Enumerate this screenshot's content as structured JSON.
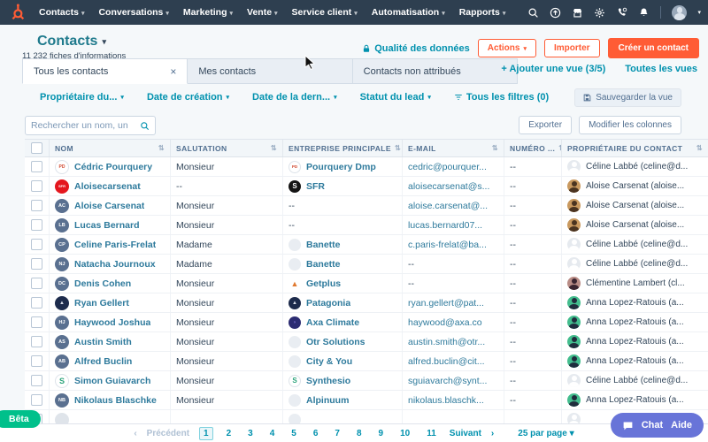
{
  "nav": {
    "items": [
      {
        "label": "Contacts"
      },
      {
        "label": "Conversations"
      },
      {
        "label": "Marketing"
      },
      {
        "label": "Vente"
      },
      {
        "label": "Service client"
      },
      {
        "label": "Automatisation"
      },
      {
        "label": "Rapports"
      }
    ],
    "icons": [
      "search-icon",
      "upgrade-icon",
      "marketplace-icon",
      "settings-icon",
      "call-icon",
      "notifications-icon",
      "user-avatar"
    ]
  },
  "header": {
    "title": "Contacts",
    "subtitle": "11 232 fiches d'informations",
    "quality_link": "Qualité des données",
    "actions_label": "Actions",
    "import_label": "Importer",
    "create_label": "Créer un contact"
  },
  "tabs": {
    "items": [
      {
        "label": "Tous les contacts",
        "active": true
      },
      {
        "label": "Mes contacts",
        "active": false
      },
      {
        "label": "Contacts non attribués",
        "active": false
      }
    ],
    "add_view": "+ Ajouter une vue (3/5)",
    "all_views": "Toutes les vues"
  },
  "filters": {
    "items": [
      "Propriétaire du...",
      "Date de création",
      "Date de la dern...",
      "Statut du lead"
    ],
    "all_filters": "Tous les filtres (0)",
    "save_view": "Sauvegarder la vue"
  },
  "toolbar": {
    "search_placeholder": "Rechercher un nom, un",
    "export_label": "Exporter",
    "edit_columns_label": "Modifier les colonnes"
  },
  "table": {
    "columns": [
      "NOM",
      "SALUTATION",
      "ENTREPRISE PRINCIPALE",
      "E-MAIL",
      "NUMÉRO ...",
      "PROPRIÉTAIRE DU CONTACT"
    ],
    "rows": [
      {
        "name": "Cédric Pourquery",
        "salutation": "Monsieur",
        "company": "Pourquery Dmp",
        "email": "cedric@pourquer...",
        "phone": "--",
        "owner": "Céline Labbé (celine@d...",
        "avatar": {
          "bg": "#ffffff",
          "fg": "#d24b32",
          "text": "PD",
          "fs": 5,
          "border": "#dde3ea"
        },
        "companyLogo": {
          "bg": "#ffffff",
          "fg": "#d24b32",
          "text": "PD",
          "fs": 4.5,
          "border": "#dde3ea"
        },
        "ownerAvatar": {
          "bg": "#e6eaef",
          "fg": "#ffffff"
        }
      },
      {
        "name": "Aloisecarsenat",
        "salutation": "--",
        "company": "SFR",
        "email": "aloisecarsenat@s...",
        "phone": "--",
        "owner": "Aloise Carsenat (aloise...",
        "avatar": {
          "bg": "#e4171e",
          "fg": "#ffffff",
          "text": "SFR",
          "fs": 4,
          "border": ""
        },
        "companyLogo": {
          "bg": "#141414",
          "fg": "#ffffff",
          "text": "S",
          "fs": 8,
          "border": ""
        },
        "ownerAvatar": {
          "bg": "#c9995f",
          "fg": "#4a3320"
        }
      },
      {
        "name": "Aloise Carsenat",
        "salutation": "Monsieur",
        "company": "--",
        "email": "aloise.carsenat@...",
        "phone": "--",
        "owner": "Aloise Carsenat (aloise...",
        "avatar": {
          "bg": "#5a7090",
          "fg": "#ffffff",
          "text": "AC",
          "fs": 5.5,
          "border": ""
        },
        "companyLogo": null,
        "ownerAvatar": {
          "bg": "#c9995f",
          "fg": "#4a3320"
        }
      },
      {
        "name": "Lucas Bernard",
        "salutation": "Monsieur",
        "company": "--",
        "email": "lucas.bernard07...",
        "phone": "--",
        "owner": "Aloise Carsenat (aloise...",
        "avatar": {
          "bg": "#5a7090",
          "fg": "#ffffff",
          "text": "LB",
          "fs": 5.5,
          "border": ""
        },
        "companyLogo": null,
        "ownerAvatar": {
          "bg": "#c9995f",
          "fg": "#4a3320"
        }
      },
      {
        "name": "Celine Paris-Frelat",
        "salutation": "Madame",
        "company": "Banette",
        "email": "c.paris-frelat@ba...",
        "phone": "--",
        "owner": "Céline Labbé (celine@d...",
        "avatar": {
          "bg": "#5a7090",
          "fg": "#ffffff",
          "text": "CP",
          "fs": 5.5,
          "border": ""
        },
        "companyLogo": {
          "bg": "#e9edf2",
          "fg": "#ffffff",
          "text": "",
          "fs": 5,
          "border": ""
        },
        "ownerAvatar": {
          "bg": "#e6eaef",
          "fg": "#ffffff"
        }
      },
      {
        "name": "Natacha Journoux",
        "salutation": "Madame",
        "company": "Banette",
        "email": "--",
        "phone": "--",
        "owner": "Céline Labbé (celine@d...",
        "avatar": {
          "bg": "#5a7090",
          "fg": "#ffffff",
          "text": "NJ",
          "fs": 5.5,
          "border": ""
        },
        "companyLogo": {
          "bg": "#e9edf2",
          "fg": "#ffffff",
          "text": "",
          "fs": 5,
          "border": ""
        },
        "ownerAvatar": {
          "bg": "#e6eaef",
          "fg": "#ffffff"
        }
      },
      {
        "name": "Denis Cohen",
        "salutation": "Monsieur",
        "company": "Getplus",
        "email": "--",
        "phone": "--",
        "owner": "Clémentine Lambert (cl...",
        "avatar": {
          "bg": "#5a7090",
          "fg": "#ffffff",
          "text": "DC",
          "fs": 5.5,
          "border": ""
        },
        "companyLogo": {
          "bg": "#ffffff",
          "fg": "#e0792f",
          "text": "▲",
          "fs": 9,
          "border": ""
        },
        "ownerAvatar": {
          "bg": "#b98c86",
          "fg": "#3a2430"
        }
      },
      {
        "name": "Ryan Gellert",
        "salutation": "Monsieur",
        "company": "Patagonia",
        "email": "ryan.gellert@pat...",
        "phone": "--",
        "owner": "Anna Lopez-Ratouis (a...",
        "avatar": {
          "bg": "#1d2b4c",
          "fg": "#d8dde8",
          "text": "▲",
          "fs": 6,
          "border": ""
        },
        "companyLogo": {
          "bg": "#1d2b4c",
          "fg": "#d8dde8",
          "text": "▲",
          "fs": 6,
          "border": ""
        },
        "ownerAvatar": {
          "bg": "#43bd8e",
          "fg": "#1f2d3d"
        }
      },
      {
        "name": "Haywood Joshua",
        "salutation": "Monsieur",
        "company": "Axa Climate",
        "email": "haywood@axa.co",
        "phone": "--",
        "owner": "Anna Lopez-Ratouis (a...",
        "avatar": {
          "bg": "#5a7090",
          "fg": "#ffffff",
          "text": "HJ",
          "fs": 5.5,
          "border": ""
        },
        "companyLogo": {
          "bg": "#2c2c72",
          "fg": "#7b6fd0",
          "text": "◗",
          "fs": 6,
          "border": ""
        },
        "ownerAvatar": {
          "bg": "#43bd8e",
          "fg": "#1f2d3d"
        }
      },
      {
        "name": "Austin Smith",
        "salutation": "Monsieur",
        "company": "Otr Solutions",
        "email": "austin.smith@otr...",
        "phone": "--",
        "owner": "Anna Lopez-Ratouis (a...",
        "avatar": {
          "bg": "#5a7090",
          "fg": "#ffffff",
          "text": "AS",
          "fs": 5.5,
          "border": ""
        },
        "companyLogo": {
          "bg": "#e9edf2",
          "fg": "#ffffff",
          "text": "",
          "fs": 5,
          "border": ""
        },
        "ownerAvatar": {
          "bg": "#43bd8e",
          "fg": "#1f2d3d"
        }
      },
      {
        "name": "Alfred Buclin",
        "salutation": "Monsieur",
        "company": "City & You",
        "email": "alfred.buclin@cit...",
        "phone": "--",
        "owner": "Anna Lopez-Ratouis (a...",
        "avatar": {
          "bg": "#5a7090",
          "fg": "#ffffff",
          "text": "AB",
          "fs": 5.5,
          "border": ""
        },
        "companyLogo": {
          "bg": "#e9edf2",
          "fg": "#ffffff",
          "text": "",
          "fs": 5,
          "border": ""
        },
        "ownerAvatar": {
          "bg": "#43bd8e",
          "fg": "#1f2d3d"
        }
      },
      {
        "name": "Simon Guiavarch",
        "salutation": "Monsieur",
        "company": "Synthesio",
        "email": "sguiavarch@synt...",
        "phone": "--",
        "owner": "Céline Labbé (celine@d...",
        "avatar": {
          "bg": "#ffffff",
          "fg": "#2aa37a",
          "text": "S",
          "fs": 9,
          "border": "#dde3ea"
        },
        "companyLogo": {
          "bg": "#ffffff",
          "fg": "#2aa37a",
          "text": "S",
          "fs": 8,
          "border": "#dde3ea"
        },
        "ownerAvatar": {
          "bg": "#e6eaef",
          "fg": "#ffffff"
        }
      },
      {
        "name": "Nikolaus Blaschke",
        "salutation": "Monsieur",
        "company": "Alpinuum",
        "email": "nikolaus.blaschk...",
        "phone": "--",
        "owner": "Anna Lopez-Ratouis (a...",
        "avatar": {
          "bg": "#5a7090",
          "fg": "#ffffff",
          "text": "NB",
          "fs": 5.5,
          "border": ""
        },
        "companyLogo": {
          "bg": "#e9edf2",
          "fg": "#ffffff",
          "text": "",
          "fs": 5,
          "border": ""
        },
        "ownerAvatar": {
          "bg": "#43bd8e",
          "fg": "#1f2d3d"
        }
      },
      {
        "name": "",
        "salutation": "",
        "company": "",
        "email": "",
        "phone": "",
        "owner": "",
        "partial": true,
        "avatar": {
          "bg": "#dfe4ea",
          "fg": "#dfe4ea",
          "text": "",
          "fs": 5,
          "border": ""
        },
        "companyLogo": {
          "bg": "#e9edf2",
          "fg": "#ffffff",
          "text": "",
          "fs": 5,
          "border": ""
        },
        "ownerAvatar": {
          "bg": "#e6eaef",
          "fg": "#ffffff"
        }
      }
    ]
  },
  "pagination": {
    "prev": "Précédent",
    "pages": [
      "1",
      "2",
      "3",
      "4",
      "5",
      "6",
      "7",
      "8",
      "9",
      "10",
      "11"
    ],
    "current": "1",
    "next": "Suivant",
    "per_page": "25 par page"
  },
  "misc": {
    "beta": "Bêta",
    "chat": "Chat",
    "help": "Aide"
  },
  "colors": {
    "navbar": "#2e3f50",
    "accent_orange": "#ff5c35",
    "link_teal": "#0091ae",
    "beta_green": "#00c08b",
    "chat_purple": "#6874d8",
    "page_bg": "#f5f8fa"
  }
}
